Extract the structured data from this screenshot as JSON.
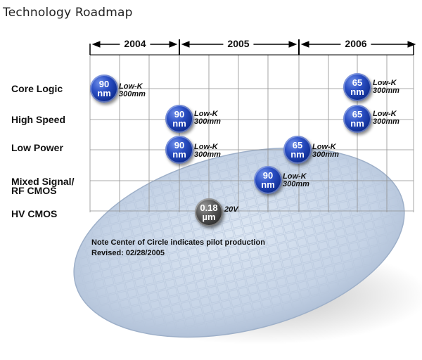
{
  "title": "Technology Roadmap",
  "years": [
    "2004",
    "2005",
    "2006"
  ],
  "rows": [
    {
      "id": "core",
      "label": "Core Logic"
    },
    {
      "id": "highspeed",
      "label": "High Speed"
    },
    {
      "id": "lowpower",
      "label": "Low Power"
    },
    {
      "id": "mixed",
      "label": "Mixed Signal/\nRF CMOS"
    },
    {
      "id": "hv",
      "label": "HV CMOS"
    }
  ],
  "nodes": [
    {
      "row": "core",
      "line1": "90",
      "line2": "nm",
      "note1": "Low-K",
      "note2": "300mm",
      "color": "#0c2a8c"
    },
    {
      "row": "core",
      "line1": "65",
      "line2": "nm",
      "note1": "Low-K",
      "note2": "300mm",
      "color": "#0c2a8c"
    },
    {
      "row": "highspeed",
      "line1": "90",
      "line2": "nm",
      "note1": "Low-K",
      "note2": "300mm",
      "color": "#0c2a8c"
    },
    {
      "row": "highspeed",
      "line1": "65",
      "line2": "nm",
      "note1": "Low-K",
      "note2": "300mm",
      "color": "#0c2a8c"
    },
    {
      "row": "lowpower",
      "line1": "90",
      "line2": "nm",
      "note1": "Low-K",
      "note2": "300mm",
      "color": "#0c2a8c"
    },
    {
      "row": "lowpower",
      "line1": "65",
      "line2": "nm",
      "note1": "Low-K",
      "note2": "300mm",
      "color": "#0c2a8c"
    },
    {
      "row": "mixed",
      "line1": "90",
      "line2": "nm",
      "note1": "Low-K",
      "note2": "300mm",
      "color": "#0c2a8c"
    },
    {
      "row": "hv",
      "line1": "0.18",
      "line2": "µm",
      "note1": "20V",
      "note2": "",
      "color": "#2a2a2a"
    }
  ],
  "note": "Note Center of Circle indicates pilot production",
  "revised": "Revised: 02/28/2005"
}
